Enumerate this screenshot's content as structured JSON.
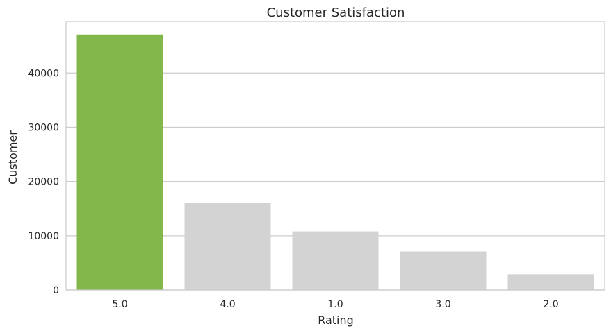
{
  "chart_data": {
    "type": "bar",
    "title": "Customer Satisfaction",
    "xlabel": "Rating",
    "ylabel": "Customer",
    "categories": [
      "5.0",
      "4.0",
      "1.0",
      "3.0",
      "2.0"
    ],
    "values": [
      47100,
      16000,
      10800,
      7100,
      2900
    ],
    "ylim": [
      0,
      49500
    ],
    "yticks": [
      0,
      10000,
      20000,
      30000,
      40000
    ],
    "ytick_labels": [
      "0",
      "10000",
      "20000",
      "30000",
      "40000"
    ],
    "bar_colors": [
      "#82b74b",
      "#d3d3d3",
      "#d3d3d3",
      "#d3d3d3",
      "#d3d3d3"
    ],
    "grid": true,
    "grid_axis": "y",
    "grid_color": "#cccccc",
    "frame_color": "#cccccc",
    "background": "#ffffff"
  }
}
